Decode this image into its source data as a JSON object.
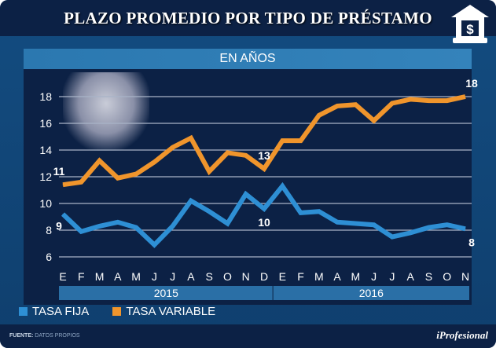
{
  "header": {
    "title": "PLAZO PROMEDIO POR TIPO DE PRÉSTAMO",
    "icon": "bank-dollar-icon"
  },
  "subtitle": "EN AÑOS",
  "legend": [
    {
      "label": "TASA FIJA",
      "color": "#2e8fd4"
    },
    {
      "label": "TASA VARIABLE",
      "color": "#f0952c"
    }
  ],
  "footer": {
    "source_label": "FUENTE:",
    "source_value": "DATOS PROPIOS",
    "brand": "iProfesional"
  },
  "chart_data": {
    "type": "line",
    "title": "PLAZO PROMEDIO POR TIPO DE PRÉSTAMO",
    "subtitle": "EN AÑOS",
    "categories": [
      "E",
      "F",
      "M",
      "A",
      "M",
      "J",
      "J",
      "A",
      "S",
      "O",
      "N",
      "D",
      "E",
      "F",
      "M",
      "A",
      "M",
      "J",
      "J",
      "A",
      "S",
      "O",
      "N"
    ],
    "years": [
      {
        "label": "2015",
        "months": 12
      },
      {
        "label": "2016",
        "months": 11
      }
    ],
    "yticks": [
      6,
      8,
      10,
      12,
      14,
      16,
      18
    ],
    "ylim": [
      5,
      19.5
    ],
    "grid": true,
    "legend_position": "bottom-left",
    "series": [
      {
        "name": "TASA FIJA",
        "color": "#2e8fd4",
        "values": [
          9.2,
          7.9,
          8.3,
          8.6,
          8.2,
          6.9,
          8.3,
          10.2,
          9.4,
          8.5,
          10.7,
          9.6,
          11.3,
          9.3,
          9.4,
          8.6,
          8.5,
          8.4,
          7.5,
          7.8,
          8.2,
          8.4,
          8.1
        ]
      },
      {
        "name": "TASA VARIABLE",
        "color": "#f0952c",
        "values": [
          11.4,
          11.6,
          13.2,
          11.9,
          12.2,
          13.1,
          14.2,
          14.9,
          12.4,
          13.8,
          13.6,
          12.6,
          14.7,
          14.7,
          16.6,
          17.3,
          17.4,
          16.2,
          17.5,
          17.8,
          17.7,
          17.7,
          18.0
        ]
      }
    ],
    "annotations": [
      {
        "series": "TASA VARIABLE",
        "index": 0,
        "text": "11"
      },
      {
        "series": "TASA VARIABLE",
        "index": 11,
        "text": "13"
      },
      {
        "series": "TASA VARIABLE",
        "index": 22,
        "text": "18"
      },
      {
        "series": "TASA FIJA",
        "index": 0,
        "text": "9"
      },
      {
        "series": "TASA FIJA",
        "index": 11,
        "text": "10"
      },
      {
        "series": "TASA FIJA",
        "index": 22,
        "text": "8"
      }
    ]
  }
}
